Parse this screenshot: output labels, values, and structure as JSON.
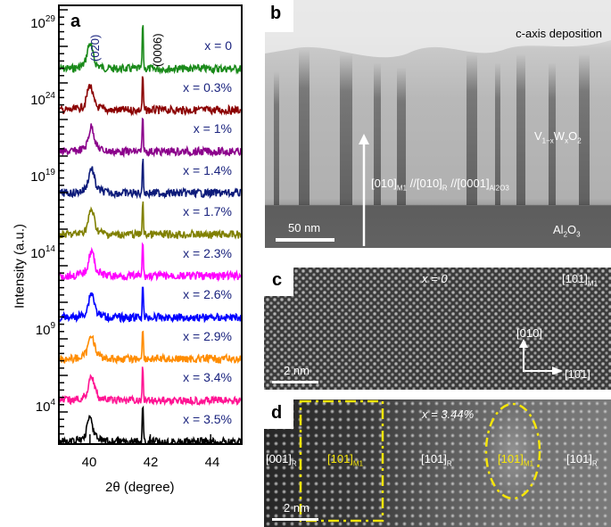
{
  "figure": {
    "panels": [
      "a",
      "b",
      "c",
      "d"
    ]
  },
  "panel_a": {
    "letter": "a",
    "ylabel": "Intensity (a.u.)",
    "xlabel": "2θ (degree)",
    "yticks": [
      {
        "base": "10",
        "exp": "29"
      },
      {
        "base": "10",
        "exp": "24"
      },
      {
        "base": "10",
        "exp": "19"
      },
      {
        "base": "10",
        "exp": "14"
      },
      {
        "base": "10",
        "exp": "9"
      },
      {
        "base": "10",
        "exp": "4"
      }
    ],
    "xticks": [
      "40",
      "42",
      "44"
    ],
    "peak_labels": {
      "p020": "(020)",
      "p0006": "(0006)"
    },
    "series_labels": [
      "x = 0",
      "x = 0.3%",
      "x = 1%",
      "x = 1.4%",
      "x = 1.7%",
      "x = 2.3%",
      "x = 2.6%",
      "x = 2.9%",
      "x = 3.4%",
      "x = 3.5%"
    ]
  },
  "chart_data": {
    "type": "line",
    "title": "",
    "xlabel": "2θ (degree)",
    "ylabel": "Intensity (a.u.)",
    "yscale": "log",
    "xlim": [
      39,
      45
    ],
    "ytick_labels": [
      "10^29",
      "10^24",
      "10^19",
      "10^14",
      "10^9",
      "10^4"
    ],
    "xtick_labels": [
      "40",
      "42",
      "44"
    ],
    "annotations": [
      "(020) peak near 40.0°",
      "(0006) peak near 41.7°"
    ],
    "series": [
      {
        "name": "x = 0",
        "color": "#1a8a1a",
        "peak_020": 40.0,
        "peak_0006": 41.75
      },
      {
        "name": "x = 0.3%",
        "color": "#8b0000",
        "peak_020": 40.0,
        "peak_0006": 41.75
      },
      {
        "name": "x = 1%",
        "color": "#8b008b",
        "peak_020": 40.05,
        "peak_0006": 41.75
      },
      {
        "name": "x = 1.4%",
        "color": "#0d1b7a",
        "peak_020": 40.05,
        "peak_0006": 41.75
      },
      {
        "name": "x = 1.7%",
        "color": "#808000",
        "peak_020": 40.05,
        "peak_0006": 41.75
      },
      {
        "name": "x = 2.3%",
        "color": "#ff00ff",
        "peak_020": 40.05,
        "peak_0006": 41.75
      },
      {
        "name": "x = 2.6%",
        "color": "#0000ff",
        "peak_020": 40.05,
        "peak_0006": 41.75
      },
      {
        "name": "x = 2.9%",
        "color": "#ff8c00",
        "peak_020": 40.05,
        "peak_0006": 41.75
      },
      {
        "name": "x = 3.4%",
        "color": "#ff1493",
        "peak_020": 40.05,
        "peak_0006": 41.75
      },
      {
        "name": "x = 3.5%",
        "color": "#000000",
        "peak_020": 40.0,
        "peak_0006": 41.75
      }
    ],
    "grid": false,
    "legend": "inline labels right"
  },
  "panel_b": {
    "letter": "b",
    "deposition": "c-axis deposition",
    "film": {
      "main": "V",
      "s1": "1−x",
      "w": "W",
      "s2": "x",
      "o": "O",
      "s3": "2"
    },
    "orientation": {
      "a": "[010]",
      "as": "M1",
      "b": " //[010]",
      "bs": "R",
      "c": " //[0001]",
      "cs": "Al2O3"
    },
    "scale": "50 nm",
    "substrate": {
      "al": "Al",
      "s1": "2",
      "o": "O",
      "s2": "3"
    }
  },
  "panel_c": {
    "letter": "c",
    "composition": "x = 0",
    "zone": {
      "t": "[101]",
      "s": "M1"
    },
    "axis_up": "[010]",
    "axis_right": "[10̄1]",
    "scale": "2 nm"
  },
  "panel_d": {
    "letter": "d",
    "composition": "x = 3.44%",
    "regions": [
      {
        "t": "[001]",
        "s": "R",
        "yellow": false
      },
      {
        "t": "[101]",
        "s": "M1",
        "yellow": true
      },
      {
        "t": "[101]",
        "s": "R",
        "yellow": false
      },
      {
        "t": "[101]",
        "s": "M1",
        "yellow": true
      },
      {
        "t": "[101]",
        "s": "R",
        "yellow": false
      }
    ],
    "scale": "2 nm"
  }
}
